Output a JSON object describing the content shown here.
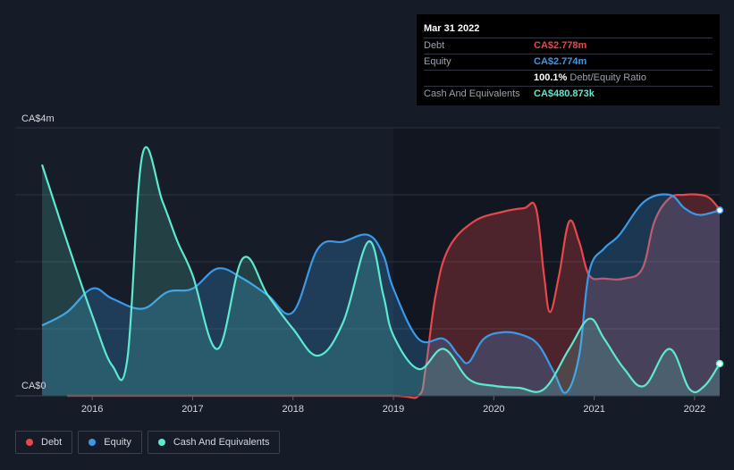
{
  "tooltip": {
    "date": "Mar 31 2022",
    "rows": [
      {
        "label": "Debt",
        "value": "CA$2.778m",
        "color": "#e8484c"
      },
      {
        "label": "Equity",
        "value": "CA$2.774m",
        "color": "#3b9ae8"
      },
      {
        "label": "",
        "value": "100.1%",
        "suffix": "Debt/Equity Ratio",
        "color": "#ffffff"
      },
      {
        "label": "Cash And Equivalents",
        "value": "CA$480.873k",
        "color": "#5de8cf"
      }
    ]
  },
  "legend": [
    {
      "label": "Debt",
      "color": "#e8484c"
    },
    {
      "label": "Equity",
      "color": "#3b9ae8"
    },
    {
      "label": "Cash And Equivalents",
      "color": "#5de8cf"
    }
  ],
  "chart_data": {
    "type": "area",
    "y_unit_label_top": "CA$4m",
    "y_unit_label_bottom": "CA$0",
    "ylim": [
      0,
      4.0
    ],
    "xlim": [
      2015.5,
      2022.25
    ],
    "x_ticks": [
      "2016",
      "2017",
      "2018",
      "2019",
      "2020",
      "2021",
      "2022"
    ],
    "grid": true,
    "series": [
      {
        "name": "Debt",
        "color": "#e8484c",
        "points": [
          [
            2015.75,
            0.0
          ],
          [
            2016.0,
            0.0
          ],
          [
            2017.0,
            0.0
          ],
          [
            2018.0,
            0.0
          ],
          [
            2019.0,
            0.0
          ],
          [
            2019.25,
            0.0
          ],
          [
            2019.32,
            0.4
          ],
          [
            2019.42,
            1.5
          ],
          [
            2019.55,
            2.2
          ],
          [
            2019.8,
            2.6
          ],
          [
            2020.1,
            2.75
          ],
          [
            2020.3,
            2.8
          ],
          [
            2020.42,
            2.8
          ],
          [
            2020.5,
            1.8
          ],
          [
            2020.56,
            1.25
          ],
          [
            2020.65,
            1.8
          ],
          [
            2020.75,
            2.6
          ],
          [
            2020.85,
            2.3
          ],
          [
            2020.95,
            1.8
          ],
          [
            2021.1,
            1.75
          ],
          [
            2021.3,
            1.75
          ],
          [
            2021.48,
            1.9
          ],
          [
            2021.6,
            2.6
          ],
          [
            2021.75,
            2.95
          ],
          [
            2021.9,
            3.0
          ],
          [
            2022.05,
            3.0
          ],
          [
            2022.15,
            2.95
          ],
          [
            2022.25,
            2.78
          ]
        ]
      },
      {
        "name": "Equity",
        "color": "#3b9ae8",
        "points": [
          [
            2015.5,
            1.05
          ],
          [
            2015.75,
            1.25
          ],
          [
            2016.0,
            1.6
          ],
          [
            2016.2,
            1.45
          ],
          [
            2016.5,
            1.3
          ],
          [
            2016.75,
            1.55
          ],
          [
            2017.0,
            1.6
          ],
          [
            2017.25,
            1.9
          ],
          [
            2017.5,
            1.75
          ],
          [
            2017.75,
            1.5
          ],
          [
            2018.0,
            1.25
          ],
          [
            2018.25,
            2.2
          ],
          [
            2018.5,
            2.3
          ],
          [
            2018.75,
            2.4
          ],
          [
            2018.9,
            2.1
          ],
          [
            2019.0,
            1.6
          ],
          [
            2019.25,
            0.85
          ],
          [
            2019.5,
            0.85
          ],
          [
            2019.65,
            0.6
          ],
          [
            2019.75,
            0.5
          ],
          [
            2019.9,
            0.85
          ],
          [
            2020.1,
            0.95
          ],
          [
            2020.3,
            0.9
          ],
          [
            2020.45,
            0.75
          ],
          [
            2020.6,
            0.35
          ],
          [
            2020.72,
            0.05
          ],
          [
            2020.85,
            0.6
          ],
          [
            2020.95,
            1.85
          ],
          [
            2021.1,
            2.2
          ],
          [
            2021.25,
            2.4
          ],
          [
            2021.5,
            2.9
          ],
          [
            2021.75,
            3.0
          ],
          [
            2021.9,
            2.8
          ],
          [
            2022.05,
            2.7
          ],
          [
            2022.25,
            2.77
          ]
        ]
      },
      {
        "name": "Cash And Equivalents",
        "color": "#5de8cf",
        "points": [
          [
            2015.5,
            3.45
          ],
          [
            2015.75,
            2.3
          ],
          [
            2016.0,
            1.2
          ],
          [
            2016.2,
            0.45
          ],
          [
            2016.35,
            0.55
          ],
          [
            2016.5,
            3.6
          ],
          [
            2016.7,
            2.9
          ],
          [
            2016.85,
            2.3
          ],
          [
            2017.0,
            1.8
          ],
          [
            2017.25,
            0.7
          ],
          [
            2017.5,
            2.05
          ],
          [
            2017.75,
            1.5
          ],
          [
            2018.0,
            1.0
          ],
          [
            2018.25,
            0.6
          ],
          [
            2018.5,
            1.1
          ],
          [
            2018.75,
            2.3
          ],
          [
            2018.9,
            1.5
          ],
          [
            2019.0,
            0.9
          ],
          [
            2019.25,
            0.4
          ],
          [
            2019.5,
            0.7
          ],
          [
            2019.75,
            0.25
          ],
          [
            2020.0,
            0.15
          ],
          [
            2020.25,
            0.12
          ],
          [
            2020.5,
            0.1
          ],
          [
            2020.75,
            0.7
          ],
          [
            2020.95,
            1.15
          ],
          [
            2021.1,
            0.85
          ],
          [
            2021.3,
            0.4
          ],
          [
            2021.5,
            0.15
          ],
          [
            2021.75,
            0.7
          ],
          [
            2021.95,
            0.1
          ],
          [
            2022.1,
            0.15
          ],
          [
            2022.25,
            0.48
          ]
        ]
      }
    ]
  }
}
